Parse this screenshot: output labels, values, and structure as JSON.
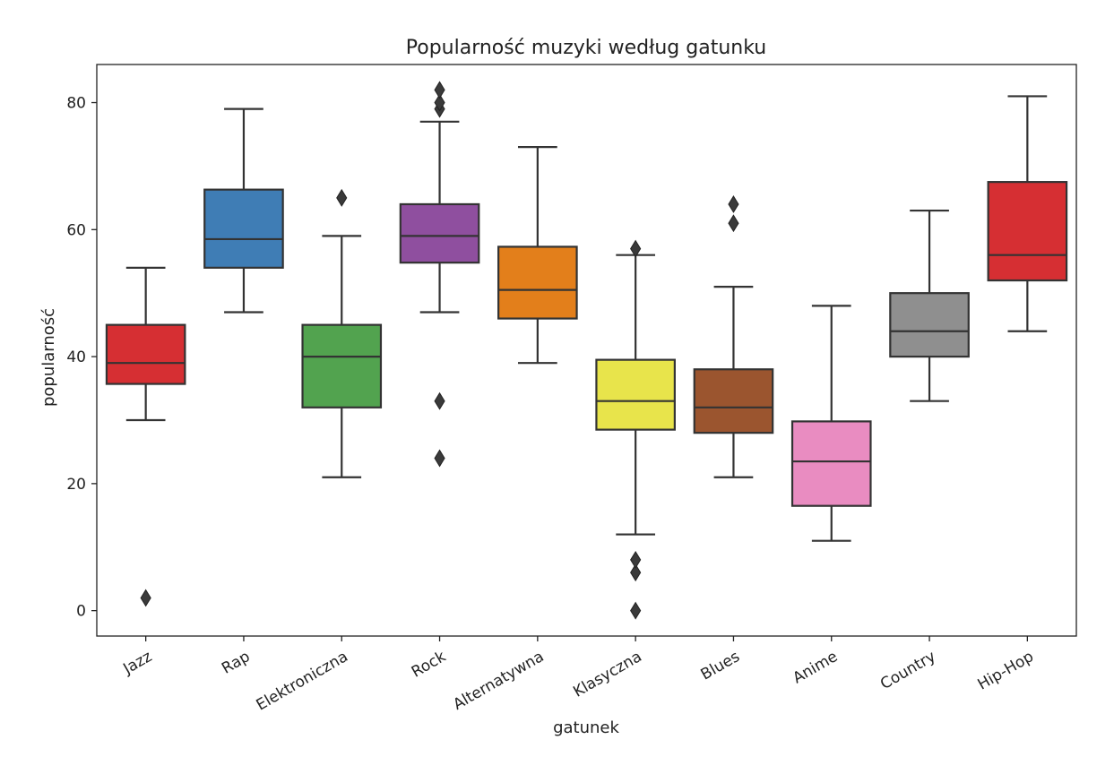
{
  "chart_data": {
    "type": "box",
    "title": "Popularność muzyki według gatunku",
    "xlabel": "gatunek",
    "ylabel": "popularność",
    "ylim": [
      -4,
      86
    ],
    "yticks": [
      0,
      20,
      40,
      60,
      80
    ],
    "ytick_labels": [
      "0",
      "20",
      "40",
      "60",
      "80"
    ],
    "grid": false,
    "categories": [
      "Jazz",
      "Rap",
      "Elektroniczna",
      "Rock",
      "Alternatywna",
      "Klasyczna",
      "Blues",
      "Anime",
      "Country",
      "Hip-Hop"
    ],
    "colors": [
      "#d62f33",
      "#3f7db5",
      "#52a34f",
      "#8f4f9f",
      "#e37f1b",
      "#e8e44b",
      "#9b552f",
      "#e98cc1",
      "#8f8f8f",
      "#d62f33"
    ],
    "boxes": [
      {
        "category": "Jazz",
        "whisker_low": 30,
        "q1": 35.7,
        "median": 39,
        "q3": 45,
        "whisker_high": 54,
        "outliers": [
          2
        ]
      },
      {
        "category": "Rap",
        "whisker_low": 47,
        "q1": 54,
        "median": 58.5,
        "q3": 66.3,
        "whisker_high": 79,
        "outliers": []
      },
      {
        "category": "Elektroniczna",
        "whisker_low": 21,
        "q1": 32,
        "median": 40,
        "q3": 45,
        "whisker_high": 59,
        "outliers": [
          65
        ]
      },
      {
        "category": "Rock",
        "whisker_low": 47,
        "q1": 54.8,
        "median": 59,
        "q3": 64,
        "whisker_high": 77,
        "outliers": [
          24,
          33,
          79,
          80,
          82
        ]
      },
      {
        "category": "Alternatywna",
        "whisker_low": 39,
        "q1": 46,
        "median": 50.5,
        "q3": 57.3,
        "whisker_high": 73,
        "outliers": []
      },
      {
        "category": "Klasyczna",
        "whisker_low": 12,
        "q1": 28.5,
        "median": 33,
        "q3": 39.5,
        "whisker_high": 56,
        "outliers": [
          0,
          6,
          8,
          57
        ]
      },
      {
        "category": "Blues",
        "whisker_low": 21,
        "q1": 28,
        "median": 32,
        "q3": 38,
        "whisker_high": 51,
        "outliers": [
          61,
          64
        ]
      },
      {
        "category": "Anime",
        "whisker_low": 11,
        "q1": 16.5,
        "median": 23.5,
        "q3": 29.8,
        "whisker_high": 48,
        "outliers": []
      },
      {
        "category": "Country",
        "whisker_low": 33,
        "q1": 40,
        "median": 44,
        "q3": 50,
        "whisker_high": 63,
        "outliers": []
      },
      {
        "category": "Hip-Hop",
        "whisker_low": 44,
        "q1": 52,
        "median": 56,
        "q3": 67.5,
        "whisker_high": 81,
        "outliers": []
      }
    ]
  }
}
